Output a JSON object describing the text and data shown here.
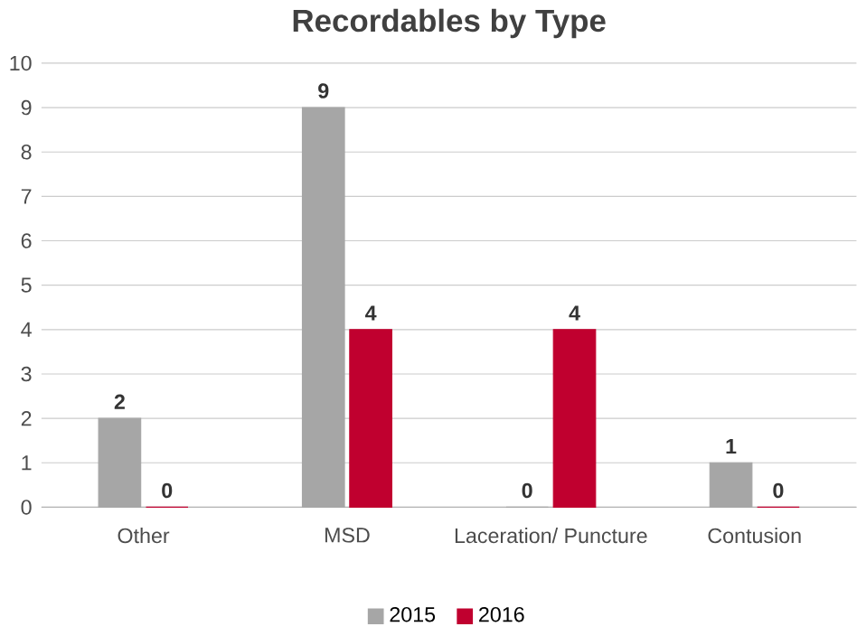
{
  "chart_data": {
    "type": "bar",
    "title": "Recordables by Type",
    "categories": [
      "Other",
      "MSD",
      "Laceration/ Puncture",
      "Contusion"
    ],
    "series": [
      {
        "name": "2015",
        "color": "#a6a6a6",
        "values": [
          2,
          9,
          0,
          1
        ]
      },
      {
        "name": "2016",
        "color": "#c0002f",
        "values": [
          0,
          4,
          4,
          0
        ]
      }
    ],
    "ylim": [
      0,
      10
    ],
    "yticks": [
      0,
      1,
      2,
      3,
      4,
      5,
      6,
      7,
      8,
      9,
      10
    ],
    "grid": "y",
    "legend": "bottom",
    "data_labels": true
  }
}
